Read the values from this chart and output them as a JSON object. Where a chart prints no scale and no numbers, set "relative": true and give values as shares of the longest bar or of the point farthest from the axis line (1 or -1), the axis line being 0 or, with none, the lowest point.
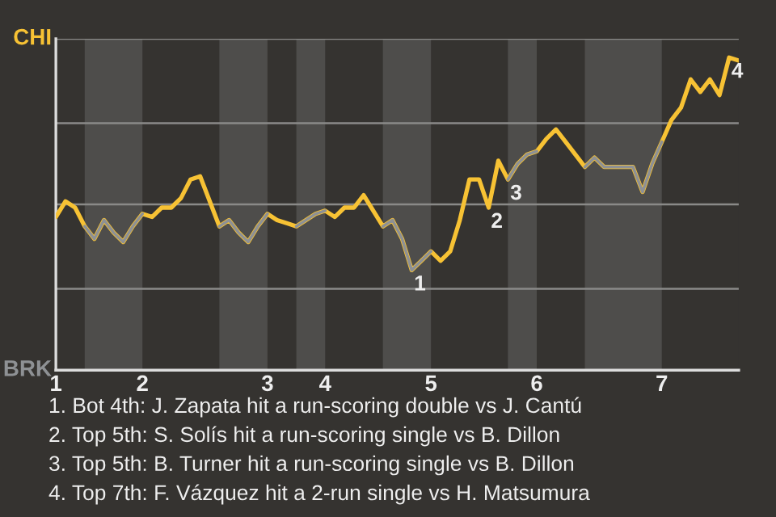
{
  "chart_data": {
    "type": "line",
    "relative": true,
    "categories": [
      "1",
      null,
      null,
      null,
      null,
      null,
      null,
      null,
      null,
      "2",
      null,
      null,
      null,
      null,
      null,
      null,
      null,
      null,
      null,
      null,
      null,
      null,
      "3",
      null,
      null,
      null,
      null,
      null,
      "4",
      null,
      null,
      null,
      null,
      null,
      null,
      null,
      null,
      null,
      null,
      "5",
      null,
      null,
      null,
      null,
      null,
      null,
      null,
      null,
      null,
      null,
      "6",
      null,
      null,
      null,
      null,
      null,
      null,
      null,
      null,
      null,
      null,
      null,
      null,
      "7",
      null,
      null,
      null,
      null,
      null,
      null,
      null,
      null
    ],
    "marker": "none",
    "line_style": "solid",
    "series": [
      {
        "color": "#f7c234",
        "values": [
          0.49,
          0.54,
          0.52,
          0.46,
          0.42,
          0.48,
          0.44,
          0.41,
          0.46,
          0.5,
          0.49,
          0.52,
          0.52,
          0.55,
          0.61,
          0.62,
          0.54,
          0.46,
          0.48,
          0.44,
          0.41,
          0.46,
          0.5,
          0.48,
          0.47,
          0.46,
          0.48,
          0.5,
          0.51,
          0.49,
          0.52,
          0.52,
          0.56,
          0.51,
          0.46,
          0.48,
          0.42,
          0.32,
          0.35,
          0.38,
          0.35,
          0.38,
          0.48,
          0.61,
          0.61,
          0.52,
          0.67,
          0.61,
          0.66,
          0.69,
          0.7,
          0.74,
          0.77,
          0.73,
          0.69,
          0.65,
          0.68,
          0.65,
          0.65,
          0.65,
          0.65,
          0.57,
          0.66,
          0.73,
          0.8,
          0.84,
          0.93,
          0.89,
          0.93,
          0.88,
          1,
          0.99
        ]
      },
      {
        "color": "#8e9194",
        "values": [
          null,
          null,
          null,
          0.46,
          0.42,
          0.48,
          0.44,
          0.41,
          0.46,
          0.5,
          null,
          null,
          null,
          null,
          null,
          null,
          null,
          0.46,
          0.48,
          0.44,
          0.41,
          0.46,
          0.5,
          null,
          null,
          0.46,
          0.48,
          0.5,
          0.51,
          null,
          null,
          null,
          null,
          null,
          0.46,
          0.48,
          0.42,
          0.32,
          0.35,
          0.38,
          null,
          null,
          null,
          null,
          null,
          null,
          null,
          0.61,
          0.66,
          0.69,
          0.7,
          null,
          null,
          null,
          null,
          0.65,
          0.68,
          0.65,
          0.65,
          0.65,
          0.65,
          0.57,
          0.66,
          0.73,
          null,
          null,
          null,
          null,
          null,
          null,
          null,
          null
        ]
      }
    ],
    "ref_lines": [
      {
        "axis": "y",
        "value": 0.26,
        "color": "#8a8a88"
      },
      {
        "axis": "y",
        "value": 0.53,
        "color": "#8a8a88"
      },
      {
        "axis": "y",
        "value": 0.79,
        "color": "#8a8a88"
      },
      {
        "axis": "y",
        "value": 1.06,
        "color": "#8a8a88"
      }
    ],
    "annotations": [
      "CHI",
      "BRK",
      {
        "text": "1",
        "y": 0.32
      },
      {
        "text": "2",
        "y": 0.52
      },
      {
        "text": "3",
        "y": 0.61
      },
      {
        "text": "4",
        "y": 1
      },
      "1. Bot 4th: J. Zapata hit a run-scoring double vs J. Cantú",
      "2. Top 5th: S. Solís hit a run-scoring single vs B. Dillon",
      "3. Top 5th: B. Turner hit a run-scoring single vs B. Dillon",
      "4. Top 7th: F. Vázquez hit a 2-run single vs H. Matsumura"
    ]
  }
}
